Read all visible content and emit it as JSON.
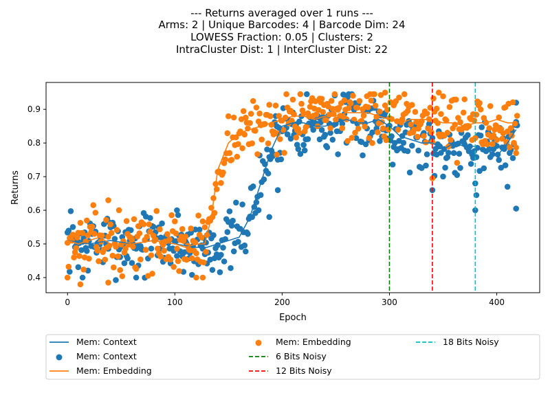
{
  "chart_data": {
    "type": "line",
    "title_lines": [
      "--- Returns averaged over 1 runs ---",
      "Arms: 2 | Unique Barcodes: 4 | Barcode Dim: 24",
      "LOWESS Fraction: 0.05 | Clusters: 2",
      "IntraCluster Dist: 1 | InterCluster Dist: 22"
    ],
    "xlabel": "Epoch",
    "ylabel": "Returns",
    "xlim": [
      -20,
      440
    ],
    "ylim": [
      0.355,
      0.98
    ],
    "x_ticks": [
      0,
      100,
      200,
      300,
      400
    ],
    "x_tick_labels": [
      "0",
      "100",
      "200",
      "300",
      "400"
    ],
    "y_ticks": [
      0.4,
      0.5,
      0.6,
      0.7,
      0.8,
      0.9
    ],
    "y_tick_labels": [
      "0.4",
      "0.5",
      "0.6",
      "0.7",
      "0.8",
      "0.9"
    ],
    "grid": false,
    "legend_placement": "bottom (below axes, 3 columns)",
    "colors": {
      "context": "#1f77b4",
      "embedding": "#ff7f0e",
      "bits6": "#008000",
      "bits12": "#ff0000",
      "bits18": "#00bfbf"
    },
    "series": [
      {
        "name": "Mem: Context",
        "kind": "lowess-line",
        "color": "#1f77b4",
        "x": [
          0,
          20,
          40,
          60,
          80,
          100,
          120,
          130,
          140,
          150,
          160,
          170,
          180,
          190,
          200,
          210,
          220,
          230,
          240,
          250,
          260,
          270,
          280,
          290,
          300,
          310,
          320,
          330,
          340,
          350,
          360,
          370,
          380,
          390,
          400,
          410,
          418
        ],
        "y": [
          0.51,
          0.5,
          0.51,
          0.5,
          0.51,
          0.5,
          0.49,
          0.49,
          0.5,
          0.51,
          0.52,
          0.58,
          0.68,
          0.78,
          0.85,
          0.86,
          0.86,
          0.85,
          0.85,
          0.86,
          0.87,
          0.86,
          0.86,
          0.87,
          0.85,
          0.82,
          0.81,
          0.8,
          0.8,
          0.78,
          0.8,
          0.79,
          0.79,
          0.78,
          0.76,
          0.8,
          0.84
        ]
      },
      {
        "name": "Mem: Context",
        "kind": "scatter",
        "color": "#1f77b4",
        "trend_x": [
          0,
          20,
          40,
          60,
          80,
          100,
          120,
          130,
          140,
          150,
          160,
          170,
          180,
          190,
          200,
          210,
          220,
          230,
          240,
          250,
          260,
          270,
          280,
          290,
          300,
          310,
          320,
          330,
          340,
          350,
          360,
          370,
          380,
          390,
          400,
          410,
          418
        ],
        "trend_y": [
          0.51,
          0.5,
          0.51,
          0.5,
          0.51,
          0.5,
          0.49,
          0.49,
          0.5,
          0.51,
          0.52,
          0.58,
          0.68,
          0.78,
          0.85,
          0.86,
          0.86,
          0.85,
          0.85,
          0.86,
          0.87,
          0.86,
          0.86,
          0.87,
          0.85,
          0.82,
          0.81,
          0.8,
          0.8,
          0.78,
          0.8,
          0.79,
          0.79,
          0.78,
          0.76,
          0.8,
          0.84
        ],
        "count": 420,
        "spread": 0.045,
        "seed": 7,
        "outliers": [
          [
            14,
            0.4
          ],
          [
            64,
            0.4
          ],
          [
            102,
            0.6
          ],
          [
            196,
            0.66
          ],
          [
            188,
            0.58
          ],
          [
            380,
            0.6
          ],
          [
            381,
            0.645
          ],
          [
            418,
            0.92
          ],
          [
            418,
            0.605
          ],
          [
            340,
            0.66
          ],
          [
            410,
            0.67
          ]
        ]
      },
      {
        "name": "Mem: Embedding",
        "kind": "lowess-line",
        "color": "#ff7f0e",
        "x": [
          0,
          10,
          20,
          30,
          40,
          60,
          80,
          100,
          110,
          120,
          128,
          134,
          140,
          150,
          160,
          170,
          180,
          190,
          200,
          210,
          220,
          230,
          240,
          250,
          260,
          270,
          280,
          290,
          300,
          310,
          320,
          330,
          340,
          350,
          360,
          370,
          380,
          390,
          400,
          410,
          418
        ],
        "y": [
          0.51,
          0.5,
          0.51,
          0.52,
          0.5,
          0.5,
          0.51,
          0.5,
          0.49,
          0.5,
          0.5,
          0.58,
          0.72,
          0.8,
          0.83,
          0.84,
          0.85,
          0.86,
          0.87,
          0.88,
          0.88,
          0.87,
          0.88,
          0.88,
          0.89,
          0.89,
          0.89,
          0.88,
          0.87,
          0.86,
          0.87,
          0.87,
          0.87,
          0.86,
          0.86,
          0.85,
          0.86,
          0.86,
          0.87,
          0.86,
          0.86
        ]
      },
      {
        "name": "Mem: Embedding",
        "kind": "scatter",
        "color": "#ff7f0e",
        "trend_x": [
          0,
          10,
          20,
          30,
          40,
          60,
          80,
          100,
          110,
          120,
          128,
          134,
          140,
          150,
          160,
          170,
          180,
          190,
          200,
          210,
          220,
          230,
          240,
          250,
          260,
          270,
          280,
          290,
          300,
          310,
          320,
          330,
          340,
          350,
          360,
          370,
          380,
          390,
          400,
          410,
          418
        ],
        "trend_y": [
          0.51,
          0.5,
          0.51,
          0.52,
          0.5,
          0.5,
          0.51,
          0.5,
          0.49,
          0.5,
          0.5,
          0.58,
          0.72,
          0.8,
          0.83,
          0.84,
          0.85,
          0.86,
          0.87,
          0.88,
          0.88,
          0.87,
          0.88,
          0.88,
          0.89,
          0.89,
          0.89,
          0.88,
          0.87,
          0.86,
          0.87,
          0.87,
          0.87,
          0.86,
          0.86,
          0.85,
          0.86,
          0.86,
          0.87,
          0.86,
          0.86
        ],
        "count": 420,
        "spread": 0.04,
        "seed": 13,
        "outliers": [
          [
            0,
            0.4
          ],
          [
            12,
            0.38
          ],
          [
            38,
            0.63
          ],
          [
            38,
            0.385
          ],
          [
            120,
            0.4
          ],
          [
            126,
            0.4
          ],
          [
            296,
            0.95
          ],
          [
            346,
            0.95
          ],
          [
            340,
            0.695
          ],
          [
            418,
            0.77
          ]
        ]
      }
    ],
    "vlines": [
      {
        "name": "6 Bits Noisy",
        "x": 300,
        "color": "#008000"
      },
      {
        "name": "12 Bits Noisy",
        "x": 340,
        "color": "#ff0000"
      },
      {
        "name": "18 Bits Noisy",
        "x": 380,
        "color": "#00bfbf"
      }
    ],
    "legend": [
      {
        "label": "Mem: Context",
        "kind": "line",
        "color": "#1f77b4"
      },
      {
        "label": "Mem: Context",
        "kind": "marker",
        "color": "#1f77b4"
      },
      {
        "label": "Mem: Embedding",
        "kind": "line",
        "color": "#ff7f0e"
      },
      {
        "label": "Mem: Embedding",
        "kind": "marker",
        "color": "#ff7f0e"
      },
      {
        "label": "6 Bits Noisy",
        "kind": "dashed",
        "color": "#008000"
      },
      {
        "label": "12 Bits Noisy",
        "kind": "dashed",
        "color": "#ff0000"
      },
      {
        "label": "18 Bits Noisy",
        "kind": "dashed",
        "color": "#00bfbf"
      }
    ]
  }
}
